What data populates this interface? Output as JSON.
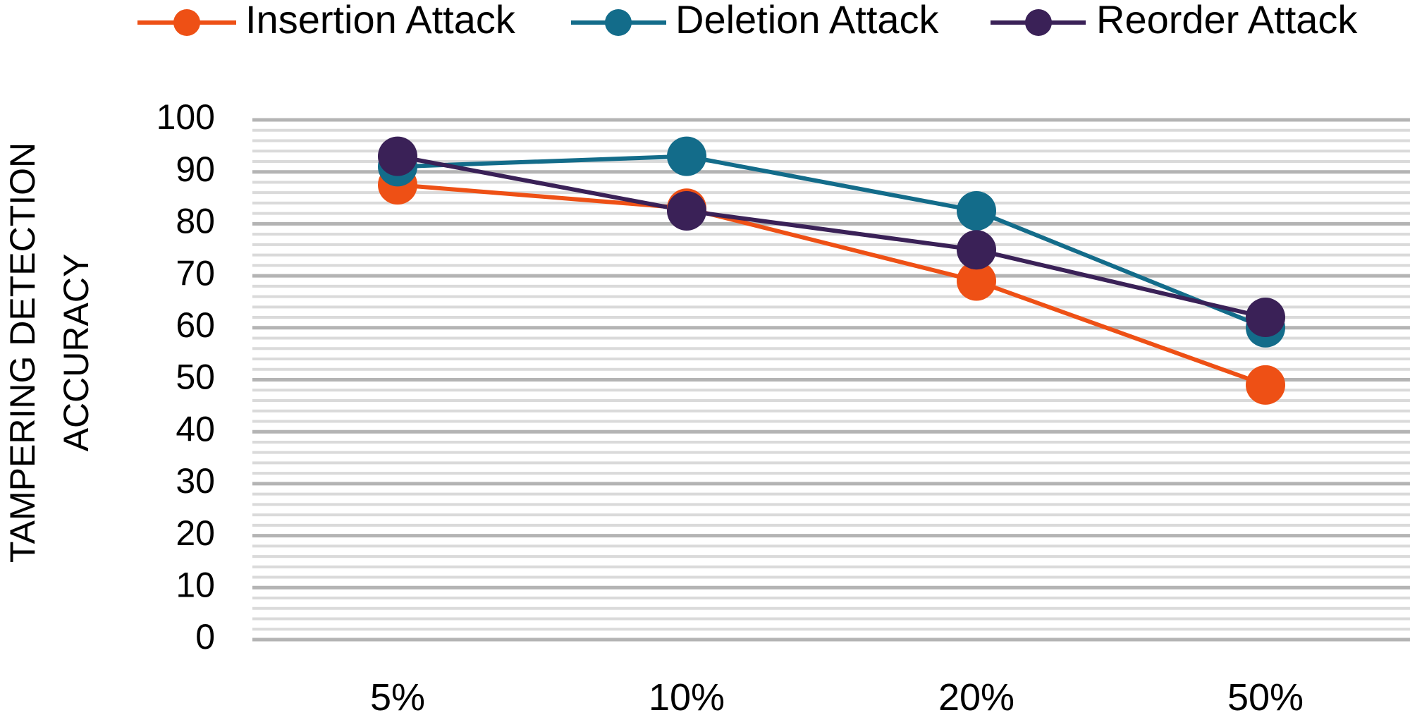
{
  "chart_data": {
    "type": "line",
    "title": "",
    "xlabel": "",
    "ylabel_lines": [
      "TAMPERING DETECTION",
      "ACCURACY"
    ],
    "categories": [
      "5%",
      "10%",
      "20%",
      "50%"
    ],
    "ylim": [
      0,
      100
    ],
    "y_ticks": [
      0,
      10,
      20,
      30,
      40,
      50,
      60,
      70,
      80,
      90,
      100
    ],
    "grid": true,
    "legend_position": "top",
    "series": [
      {
        "name": "Insertion Attack",
        "color": "#EE5015",
        "values": [
          87.5,
          83,
          69,
          49
        ]
      },
      {
        "name": "Deletion Attack",
        "color": "#136C8A",
        "values": [
          91,
          93,
          82.5,
          60
        ]
      },
      {
        "name": "Reorder Attack",
        "color": "#3A2157",
        "values": [
          93,
          82.5,
          75,
          62
        ]
      }
    ]
  }
}
